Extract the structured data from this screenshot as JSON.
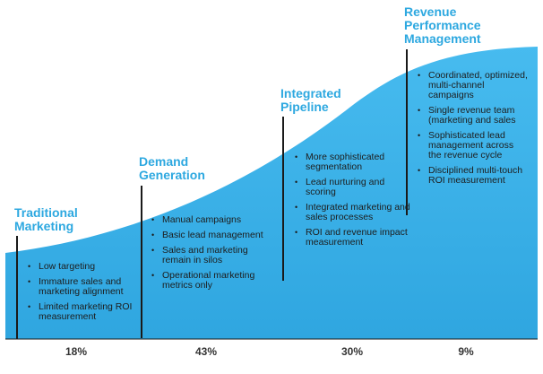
{
  "stages": [
    {
      "title": "Traditional Marketing",
      "bullets": [
        "Low targeting",
        "Immature sales and marketing alignment",
        "Limited marketing ROI measurement"
      ],
      "share": "18%"
    },
    {
      "title": "Demand Generation",
      "bullets": [
        "Manual campaigns",
        "Basic lead management",
        "Sales and marketing remain in silos",
        "Operational marketing metrics only"
      ],
      "share": "43%"
    },
    {
      "title": "Integrated Pipeline",
      "bullets": [
        "More sophisticated segmentation",
        "Lead nurturing and scoring",
        "Integrated marketing and sales processes",
        "ROI and revenue impact measurement"
      ],
      "share": "30%"
    },
    {
      "title": "Revenue Performance Management",
      "bullets": [
        "Coordinated, optimized, multi-channel campaigns",
        "Single revenue team (marketing and sales",
        "Sophisticated lead management across the revenue cycle",
        "Disciplined multi-touch ROI measurement"
      ],
      "share": "9%"
    }
  ],
  "colors": {
    "area": "#3fb4e8",
    "area_edge": "#1f8fc8",
    "title": "#2da8e0",
    "text": "#1d1d1d"
  }
}
